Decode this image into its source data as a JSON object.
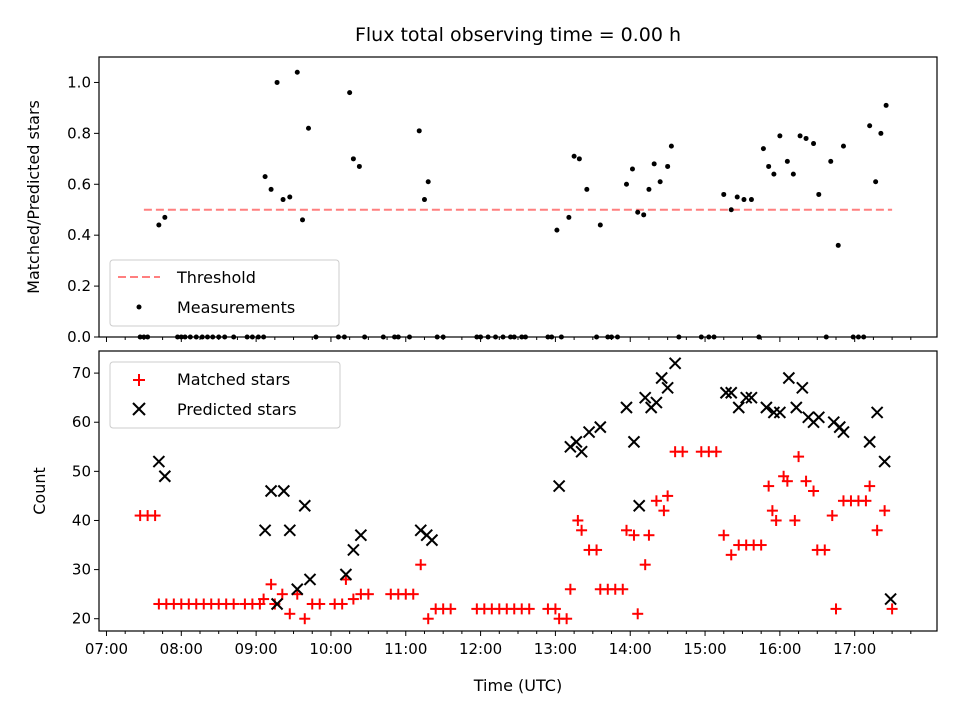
{
  "chart_data": [
    {
      "type": "scatter",
      "title": "Flux total observing time = 0.00 h",
      "xlabel": "",
      "ylabel": "Matched/Predicted stars",
      "xlim": [
        6.9,
        18.1
      ],
      "ylim": [
        0,
        1.1
      ],
      "yticks": [
        "0.0",
        "0.2",
        "0.4",
        "0.6",
        "0.8",
        "1.0"
      ],
      "xtick_labels": "none",
      "legend_position": "lower-left",
      "threshold": {
        "name": "Threshold",
        "value": 0.5,
        "x": [
          7.5,
          17.5
        ],
        "color": "#ff7f7f"
      },
      "series": [
        {
          "name": "Measurements",
          "color": "#000000",
          "points": [
            [
              7.45,
              0
            ],
            [
              7.5,
              0
            ],
            [
              7.55,
              0
            ],
            [
              7.7,
              0.44
            ],
            [
              7.78,
              0.47
            ],
            [
              7.95,
              0
            ],
            [
              8.0,
              0
            ],
            [
              8.05,
              0
            ],
            [
              8.12,
              0
            ],
            [
              8.2,
              0
            ],
            [
              8.28,
              0
            ],
            [
              8.35,
              0
            ],
            [
              8.42,
              0
            ],
            [
              8.5,
              0
            ],
            [
              8.58,
              0
            ],
            [
              8.7,
              0
            ],
            [
              8.88,
              0
            ],
            [
              8.95,
              0
            ],
            [
              9.03,
              0
            ],
            [
              9.1,
              0
            ],
            [
              9.12,
              0.63
            ],
            [
              9.2,
              0.58
            ],
            [
              9.28,
              1.0
            ],
            [
              9.36,
              0.54
            ],
            [
              9.45,
              0.55
            ],
            [
              9.55,
              1.04
            ],
            [
              9.62,
              0.46
            ],
            [
              9.7,
              0.82
            ],
            [
              9.8,
              0
            ],
            [
              10.1,
              0
            ],
            [
              10.18,
              0
            ],
            [
              10.25,
              0.96
            ],
            [
              10.3,
              0.7
            ],
            [
              10.38,
              0.67
            ],
            [
              10.45,
              0
            ],
            [
              10.7,
              0
            ],
            [
              10.85,
              0
            ],
            [
              10.9,
              0
            ],
            [
              11.05,
              0
            ],
            [
              11.18,
              0.81
            ],
            [
              11.25,
              0.54
            ],
            [
              11.3,
              0.61
            ],
            [
              11.42,
              0
            ],
            [
              11.5,
              0
            ],
            [
              11.95,
              0
            ],
            [
              12.0,
              0
            ],
            [
              12.1,
              0
            ],
            [
              12.2,
              0
            ],
            [
              12.3,
              0
            ],
            [
              12.4,
              0
            ],
            [
              12.45,
              0
            ],
            [
              12.55,
              0
            ],
            [
              12.6,
              0
            ],
            [
              12.9,
              0
            ],
            [
              12.95,
              0
            ],
            [
              13.02,
              0.42
            ],
            [
              13.08,
              0
            ],
            [
              13.18,
              0.47
            ],
            [
              13.25,
              0.71
            ],
            [
              13.32,
              0.7
            ],
            [
              13.42,
              0.58
            ],
            [
              13.55,
              0
            ],
            [
              13.6,
              0.44
            ],
            [
              13.7,
              0
            ],
            [
              13.75,
              0
            ],
            [
              13.83,
              0
            ],
            [
              13.95,
              0.6
            ],
            [
              14.03,
              0.66
            ],
            [
              14.1,
              0.49
            ],
            [
              14.18,
              0.48
            ],
            [
              14.25,
              0.58
            ],
            [
              14.32,
              0.68
            ],
            [
              14.4,
              0.61
            ],
            [
              14.5,
              0.67
            ],
            [
              14.55,
              0.75
            ],
            [
              14.65,
              0
            ],
            [
              14.95,
              0
            ],
            [
              15.05,
              0
            ],
            [
              15.12,
              0
            ],
            [
              15.25,
              0.56
            ],
            [
              15.35,
              0.5
            ],
            [
              15.43,
              0.55
            ],
            [
              15.52,
              0.54
            ],
            [
              15.62,
              0.54
            ],
            [
              15.72,
              0
            ],
            [
              15.78,
              0.74
            ],
            [
              15.85,
              0.67
            ],
            [
              15.92,
              0.64
            ],
            [
              16.0,
              0.79
            ],
            [
              16.1,
              0.69
            ],
            [
              16.18,
              0.64
            ],
            [
              16.27,
              0.79
            ],
            [
              16.35,
              0.78
            ],
            [
              16.45,
              0.76
            ],
            [
              16.52,
              0.56
            ],
            [
              16.62,
              0
            ],
            [
              16.68,
              0.69
            ],
            [
              16.78,
              0.36
            ],
            [
              16.85,
              0.75
            ],
            [
              16.98,
              0
            ],
            [
              17.05,
              0
            ],
            [
              17.12,
              0
            ],
            [
              17.2,
              0.83
            ],
            [
              17.28,
              0.61
            ],
            [
              17.35,
              0.8
            ],
            [
              17.42,
              0.91
            ]
          ]
        }
      ]
    },
    {
      "type": "scatter",
      "title": "",
      "xlabel": "Time (UTC)",
      "ylabel": "Count",
      "xlim": [
        6.9,
        18.1
      ],
      "ylim": [
        17.5,
        74.5
      ],
      "yticks": [
        "20",
        "30",
        "40",
        "50",
        "60",
        "70"
      ],
      "xticks": [
        "07:00",
        "08:00",
        "09:00",
        "10:00",
        "11:00",
        "12:00",
        "13:00",
        "14:00",
        "15:00",
        "16:00",
        "17:00"
      ],
      "legend_position": "upper-left",
      "series": [
        {
          "name": "Matched stars",
          "color": "#ff0000",
          "marker": "plus",
          "points": [
            [
              7.45,
              41
            ],
            [
              7.55,
              41
            ],
            [
              7.65,
              41
            ],
            [
              7.7,
              23
            ],
            [
              7.8,
              23
            ],
            [
              7.9,
              23
            ],
            [
              8.0,
              23
            ],
            [
              8.1,
              23
            ],
            [
              8.2,
              23
            ],
            [
              8.3,
              23
            ],
            [
              8.4,
              23
            ],
            [
              8.5,
              23
            ],
            [
              8.6,
              23
            ],
            [
              8.7,
              23
            ],
            [
              8.85,
              23
            ],
            [
              8.95,
              23
            ],
            [
              9.05,
              23
            ],
            [
              9.1,
              24
            ],
            [
              9.2,
              27
            ],
            [
              9.25,
              23
            ],
            [
              9.35,
              25
            ],
            [
              9.45,
              21
            ],
            [
              9.55,
              25
            ],
            [
              9.65,
              20
            ],
            [
              9.75,
              23
            ],
            [
              9.85,
              23
            ],
            [
              10.05,
              23
            ],
            [
              10.15,
              23
            ],
            [
              10.2,
              28
            ],
            [
              10.3,
              24
            ],
            [
              10.4,
              25
            ],
            [
              10.5,
              25
            ],
            [
              10.8,
              25
            ],
            [
              10.9,
              25
            ],
            [
              11.0,
              25
            ],
            [
              11.1,
              25
            ],
            [
              11.2,
              31
            ],
            [
              11.3,
              20
            ],
            [
              11.4,
              22
            ],
            [
              11.5,
              22
            ],
            [
              11.6,
              22
            ],
            [
              11.95,
              22
            ],
            [
              12.05,
              22
            ],
            [
              12.15,
              22
            ],
            [
              12.25,
              22
            ],
            [
              12.35,
              22
            ],
            [
              12.45,
              22
            ],
            [
              12.55,
              22
            ],
            [
              12.65,
              22
            ],
            [
              12.9,
              22
            ],
            [
              13.0,
              22
            ],
            [
              13.05,
              20
            ],
            [
              13.15,
              20
            ],
            [
              13.2,
              26
            ],
            [
              13.3,
              40
            ],
            [
              13.35,
              38
            ],
            [
              13.45,
              34
            ],
            [
              13.55,
              34
            ],
            [
              13.6,
              26
            ],
            [
              13.7,
              26
            ],
            [
              13.8,
              26
            ],
            [
              13.9,
              26
            ],
            [
              13.95,
              38
            ],
            [
              14.05,
              37
            ],
            [
              14.1,
              21
            ],
            [
              14.2,
              31
            ],
            [
              14.25,
              37
            ],
            [
              14.35,
              44
            ],
            [
              14.45,
              42
            ],
            [
              14.5,
              45
            ],
            [
              14.6,
              54
            ],
            [
              14.7,
              54
            ],
            [
              14.95,
              54
            ],
            [
              15.05,
              54
            ],
            [
              15.15,
              54
            ],
            [
              15.25,
              37
            ],
            [
              15.35,
              33
            ],
            [
              15.45,
              35
            ],
            [
              15.55,
              35
            ],
            [
              15.65,
              35
            ],
            [
              15.75,
              35
            ],
            [
              15.85,
              47
            ],
            [
              15.9,
              42
            ],
            [
              15.95,
              40
            ],
            [
              16.05,
              49
            ],
            [
              16.1,
              48
            ],
            [
              16.2,
              40
            ],
            [
              16.25,
              53
            ],
            [
              16.35,
              48
            ],
            [
              16.45,
              46
            ],
            [
              16.5,
              34
            ],
            [
              16.6,
              34
            ],
            [
              16.7,
              41
            ],
            [
              16.75,
              22
            ],
            [
              16.85,
              44
            ],
            [
              16.95,
              44
            ],
            [
              17.05,
              44
            ],
            [
              17.15,
              44
            ],
            [
              17.2,
              47
            ],
            [
              17.3,
              38
            ],
            [
              17.4,
              42
            ],
            [
              17.5,
              22
            ]
          ]
        },
        {
          "name": "Predicted stars",
          "color": "#000000",
          "marker": "x",
          "points": [
            [
              7.7,
              52
            ],
            [
              7.78,
              49
            ],
            [
              9.12,
              38
            ],
            [
              9.2,
              46
            ],
            [
              9.28,
              23
            ],
            [
              9.37,
              46
            ],
            [
              9.45,
              38
            ],
            [
              9.55,
              26
            ],
            [
              9.65,
              43
            ],
            [
              9.72,
              28
            ],
            [
              10.2,
              29
            ],
            [
              10.3,
              34
            ],
            [
              10.4,
              37
            ],
            [
              11.2,
              38
            ],
            [
              11.28,
              37
            ],
            [
              11.35,
              36
            ],
            [
              13.05,
              47
            ],
            [
              13.2,
              55
            ],
            [
              13.28,
              56
            ],
            [
              13.35,
              54
            ],
            [
              13.45,
              58
            ],
            [
              13.6,
              59
            ],
            [
              13.95,
              63
            ],
            [
              14.05,
              56
            ],
            [
              14.12,
              43
            ],
            [
              14.2,
              65
            ],
            [
              14.28,
              63
            ],
            [
              14.35,
              64
            ],
            [
              14.42,
              69
            ],
            [
              14.5,
              67
            ],
            [
              14.6,
              72
            ],
            [
              15.28,
              66
            ],
            [
              15.35,
              66
            ],
            [
              15.45,
              63
            ],
            [
              15.55,
              65
            ],
            [
              15.62,
              65
            ],
            [
              15.82,
              63
            ],
            [
              15.92,
              62
            ],
            [
              16.0,
              62
            ],
            [
              16.12,
              69
            ],
            [
              16.22,
              63
            ],
            [
              16.3,
              67
            ],
            [
              16.38,
              61
            ],
            [
              16.45,
              60
            ],
            [
              16.52,
              61
            ],
            [
              16.72,
              60
            ],
            [
              16.8,
              59
            ],
            [
              16.85,
              58
            ],
            [
              17.2,
              56
            ],
            [
              17.3,
              62
            ],
            [
              17.4,
              52
            ],
            [
              17.48,
              24
            ]
          ]
        }
      ]
    }
  ]
}
